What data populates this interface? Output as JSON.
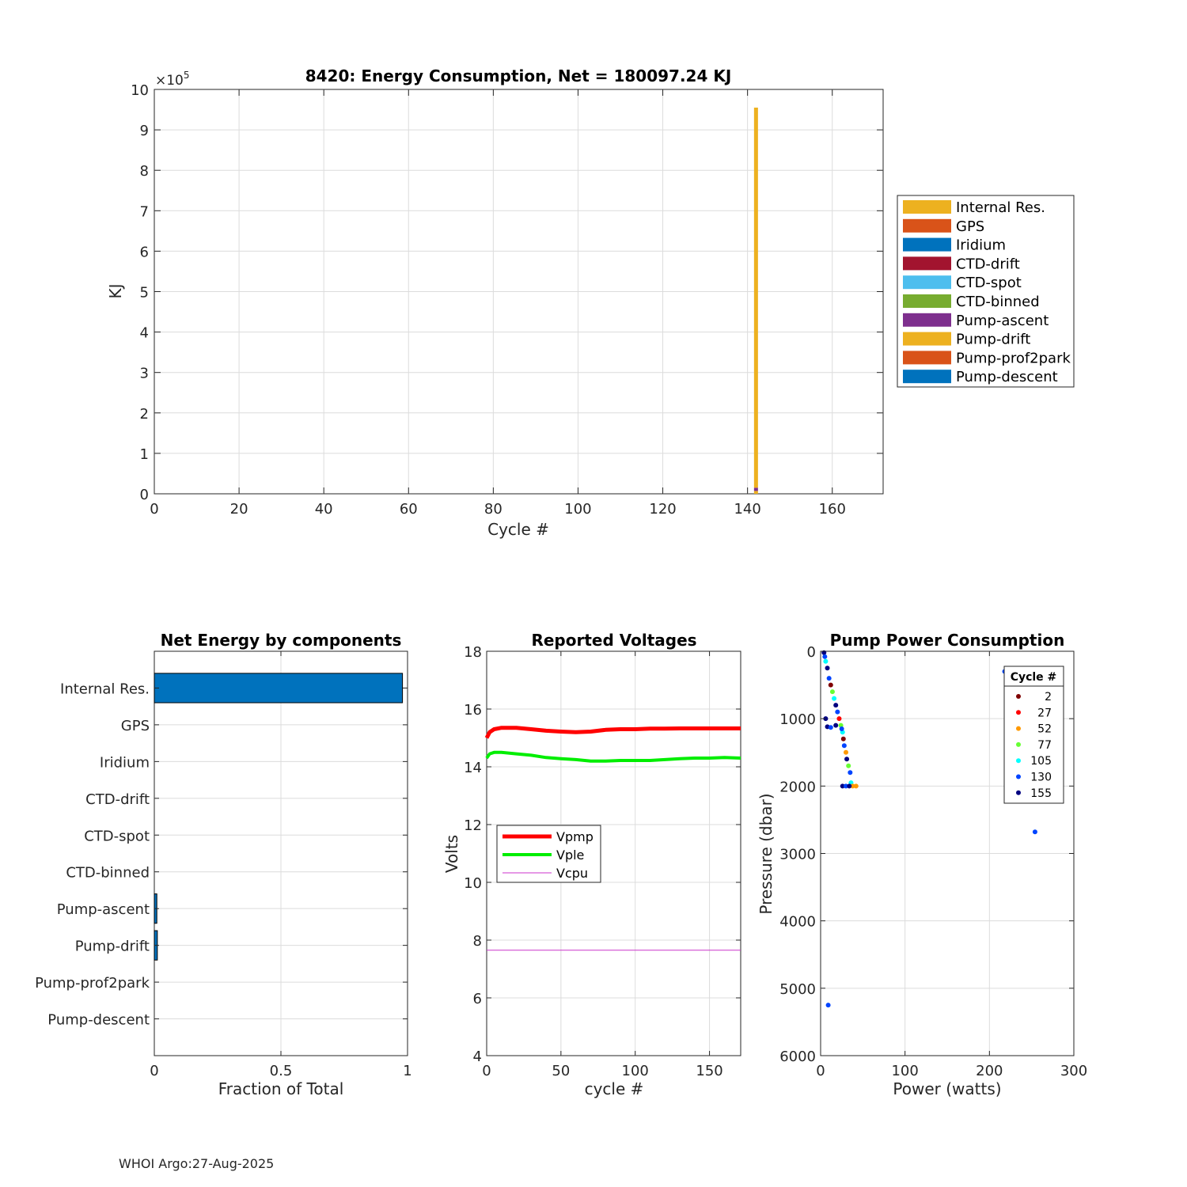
{
  "footer": "WHOI Argo:27-Aug-2025",
  "colors": {
    "internal_res": "#EDB120",
    "gps": "#D95319",
    "iridium": "#0072BD",
    "ctd_drift": "#A2142F",
    "ctd_spot": "#4DBEEE",
    "ctd_binned": "#77AC30",
    "pump_ascent": "#7E2F8E",
    "pump_drift": "#EDB120",
    "pump_prof2park": "#D95319",
    "pump_descent": "#0072BD",
    "vpmp": "#FF0000",
    "vple": "#00EE00",
    "vcpu": "#CC33CC"
  },
  "chart_data": [
    {
      "type": "bar",
      "stacked": true,
      "title": "8420: Energy Consumption,  Net = 180097.24 KJ",
      "xlabel": "Cycle #",
      "ylabel": "KJ",
      "y_exponent_label": "×10",
      "y_exponent": "5",
      "xlim": [
        0,
        172
      ],
      "ylim": [
        0,
        10
      ],
      "xticks": [
        0,
        20,
        40,
        60,
        80,
        100,
        120,
        140,
        160
      ],
      "yticks": [
        0,
        1,
        2,
        3,
        4,
        5,
        6,
        7,
        8,
        9,
        10
      ],
      "legend_position": "outside-right",
      "legend": [
        "Internal Res.",
        "GPS",
        "Iridium",
        "CTD-drift",
        "CTD-spot",
        "CTD-binned",
        "Pump-ascent",
        "Pump-drift",
        "Pump-prof2park",
        "Pump-descent"
      ],
      "bars": [
        {
          "cycle": 142,
          "segments": [
            {
              "series": "Pump-drift",
              "value": 0.07
            },
            {
              "series": "Pump-ascent",
              "value": 0.08
            },
            {
              "series": "Internal Res.",
              "value": 9.4
            }
          ]
        }
      ]
    },
    {
      "type": "bar",
      "orientation": "horizontal",
      "title": "Net Energy by components",
      "xlabel": "Fraction of Total",
      "xlim": [
        0,
        1
      ],
      "xticks": [
        0,
        0.5,
        1
      ],
      "categories": [
        "Internal Res.",
        "GPS",
        "Iridium",
        "CTD-drift",
        "CTD-spot",
        "CTD-binned",
        "Pump-ascent",
        "Pump-drift",
        "Pump-prof2park",
        "Pump-descent"
      ],
      "values": [
        0.98,
        0.0,
        0.0,
        0.0,
        0.0,
        0.0,
        0.01,
        0.012,
        0.0,
        0.0
      ]
    },
    {
      "type": "line",
      "title": "Reported Voltages",
      "xlabel": "cycle #",
      "ylabel": "Volts",
      "xlim": [
        0,
        171
      ],
      "ylim": [
        4,
        18
      ],
      "xticks": [
        0,
        50,
        100,
        150
      ],
      "yticks": [
        4,
        6,
        8,
        10,
        12,
        14,
        16,
        18
      ],
      "legend_position": "middle-left",
      "series": [
        {
          "name": "Vpmp",
          "x": [
            0,
            2,
            5,
            10,
            20,
            30,
            40,
            50,
            60,
            70,
            80,
            90,
            100,
            110,
            120,
            130,
            140,
            150,
            160,
            171
          ],
          "values": [
            15.0,
            15.2,
            15.3,
            15.35,
            15.35,
            15.3,
            15.25,
            15.22,
            15.2,
            15.22,
            15.28,
            15.3,
            15.3,
            15.32,
            15.32,
            15.33,
            15.33,
            15.33,
            15.33,
            15.33
          ]
        },
        {
          "name": "Vple",
          "x": [
            0,
            2,
            5,
            10,
            20,
            30,
            40,
            50,
            60,
            70,
            80,
            90,
            100,
            110,
            120,
            130,
            140,
            150,
            160,
            171
          ],
          "values": [
            14.3,
            14.45,
            14.5,
            14.5,
            14.45,
            14.4,
            14.32,
            14.28,
            14.25,
            14.2,
            14.2,
            14.22,
            14.22,
            14.22,
            14.25,
            14.28,
            14.3,
            14.3,
            14.32,
            14.3
          ]
        },
        {
          "name": "Vcpu",
          "x": [
            0,
            171
          ],
          "values": [
            7.65,
            7.65
          ]
        }
      ]
    },
    {
      "type": "scatter",
      "title": "Pump Power Consumption",
      "xlabel": "Power (watts)",
      "ylabel": "Pressure (dbar)",
      "xlim": [
        0,
        300
      ],
      "ylim": [
        0,
        6000
      ],
      "y_reversed": true,
      "xticks": [
        0,
        100,
        200,
        300
      ],
      "yticks": [
        0,
        1000,
        2000,
        3000,
        4000,
        5000,
        6000
      ],
      "legend_title": "Cycle #",
      "legend_position": "top-right",
      "legend": [
        {
          "label": "2",
          "color": "#7F0000"
        },
        {
          "label": "27",
          "color": "#FF0000"
        },
        {
          "label": "52",
          "color": "#FF9900"
        },
        {
          "label": "77",
          "color": "#66FF33"
        },
        {
          "label": "105",
          "color": "#00FFFF"
        },
        {
          "label": "130",
          "color": "#0044FF"
        },
        {
          "label": "155",
          "color": "#000080"
        }
      ],
      "points": [
        {
          "x": 4,
          "y": 20,
          "c": "#000080"
        },
        {
          "x": 5,
          "y": 80,
          "c": "#0044FF"
        },
        {
          "x": 6,
          "y": 150,
          "c": "#00FFFF"
        },
        {
          "x": 8,
          "y": 250,
          "c": "#000080"
        },
        {
          "x": 10,
          "y": 400,
          "c": "#0044FF"
        },
        {
          "x": 12,
          "y": 500,
          "c": "#7F0000"
        },
        {
          "x": 14,
          "y": 600,
          "c": "#66FF33"
        },
        {
          "x": 16,
          "y": 700,
          "c": "#00FFFF"
        },
        {
          "x": 18,
          "y": 800,
          "c": "#000080"
        },
        {
          "x": 20,
          "y": 900,
          "c": "#0044FF"
        },
        {
          "x": 22,
          "y": 1000,
          "c": "#FF0000"
        },
        {
          "x": 24,
          "y": 1100,
          "c": "#66FF33"
        },
        {
          "x": 26,
          "y": 1200,
          "c": "#00FFFF"
        },
        {
          "x": 27,
          "y": 1300,
          "c": "#7F0000"
        },
        {
          "x": 28,
          "y": 1400,
          "c": "#0044FF"
        },
        {
          "x": 30,
          "y": 1500,
          "c": "#FF9900"
        },
        {
          "x": 31,
          "y": 1600,
          "c": "#000080"
        },
        {
          "x": 33,
          "y": 1700,
          "c": "#66FF33"
        },
        {
          "x": 35,
          "y": 1800,
          "c": "#0044FF"
        },
        {
          "x": 36,
          "y": 1950,
          "c": "#00FFFF"
        },
        {
          "x": 38,
          "y": 2000,
          "c": "#FF9900"
        },
        {
          "x": 42,
          "y": 2000,
          "c": "#FF9900"
        },
        {
          "x": 26,
          "y": 2000,
          "c": "#000080"
        },
        {
          "x": 30,
          "y": 2000,
          "c": "#0044FF"
        },
        {
          "x": 34,
          "y": 2000,
          "c": "#000080"
        },
        {
          "x": 6,
          "y": 1000,
          "c": "#000080"
        },
        {
          "x": 8,
          "y": 1120,
          "c": "#000080"
        },
        {
          "x": 12,
          "y": 1130,
          "c": "#0044FF"
        },
        {
          "x": 18,
          "y": 1100,
          "c": "#000080"
        },
        {
          "x": 25,
          "y": 1150,
          "c": "#0044FF"
        },
        {
          "x": 218,
          "y": 300,
          "c": "#0044FF"
        },
        {
          "x": 254,
          "y": 2680,
          "c": "#0044FF"
        },
        {
          "x": 9,
          "y": 5250,
          "c": "#0044FF"
        }
      ]
    }
  ]
}
